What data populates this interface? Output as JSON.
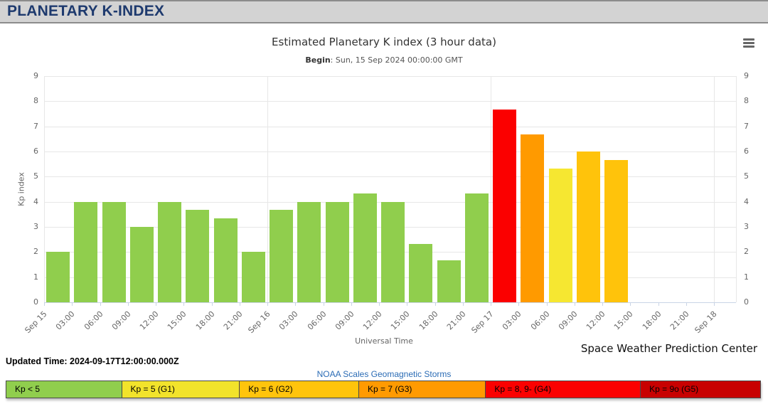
{
  "page": {
    "title": "PLANETARY K-INDEX"
  },
  "chart": {
    "title": "Estimated Planetary K index (3 hour data)",
    "subtitle_label": "Begin",
    "subtitle_value": ": Sun, 15 Sep 2024 00:00:00 GMT",
    "y_axis_title": "Kp index",
    "x_axis_title": "Universal Time",
    "credit": "Space Weather Prediction Center",
    "menu_icon": "hamburger-menu-icon"
  },
  "chart_data": {
    "type": "bar",
    "title": "Estimated Planetary K index (3 hour data)",
    "subtitle": "Begin: Sun, 15 Sep 2024 00:00:00 GMT",
    "xlabel": "Universal Time",
    "ylabel": "Kp index",
    "ylim": [
      0,
      9
    ],
    "y_ticks": [
      0,
      1,
      2,
      3,
      4,
      5,
      6,
      7,
      8,
      9
    ],
    "grid": true,
    "x_tick_labels": [
      "Sep 15",
      "03:00",
      "06:00",
      "09:00",
      "12:00",
      "15:00",
      "18:00",
      "21:00",
      "Sep 16",
      "03:00",
      "06:00",
      "09:00",
      "12:00",
      "15:00",
      "18:00",
      "21:00",
      "Sep 17",
      "03:00",
      "06:00",
      "09:00",
      "12:00",
      "15:00",
      "18:00",
      "21:00",
      "Sep 18"
    ],
    "day_tick_indices": [
      0,
      8,
      16,
      24
    ],
    "values": [
      2.0,
      4.0,
      4.0,
      3.0,
      4.0,
      3.67,
      3.33,
      2.0,
      3.67,
      4.0,
      4.0,
      4.33,
      4.0,
      2.33,
      1.67,
      4.33,
      7.67,
      6.67,
      5.33,
      6.0,
      5.67
    ],
    "bar_colors": [
      "#90CE4D",
      "#90CE4D",
      "#90CE4D",
      "#90CE4D",
      "#90CE4D",
      "#90CE4D",
      "#90CE4D",
      "#90CE4D",
      "#90CE4D",
      "#90CE4D",
      "#90CE4D",
      "#90CE4D",
      "#90CE4D",
      "#90CE4D",
      "#90CE4D",
      "#90CE4D",
      "#FB0000",
      "#FF9A00",
      "#F6E731",
      "#FFC30B",
      "#FFC30B"
    ],
    "legend_position": "bottom"
  },
  "footer": {
    "updated_time": "Updated Time: 2024-09-17T12:00:00.000Z",
    "scales_link": "NOAA Scales Geomagnetic Storms",
    "legend": [
      {
        "label": "Kp < 5",
        "color": "#90CE4D",
        "width_pct": 15.4
      },
      {
        "label": "Kp = 5 (G1)",
        "color": "#F2E32B",
        "width_pct": 15.6
      },
      {
        "label": "Kp = 6 (G2)",
        "color": "#FFC40C",
        "width_pct": 15.8
      },
      {
        "label": "Kp = 7 (G3)",
        "color": "#FF9A00",
        "width_pct": 16.8
      },
      {
        "label": "Kp = 8, 9- (G4)",
        "color": "#FB0000",
        "width_pct": 20.5
      },
      {
        "label": "Kp = 9o (G5)",
        "color": "#C80000",
        "width_pct": 15.9
      }
    ]
  }
}
